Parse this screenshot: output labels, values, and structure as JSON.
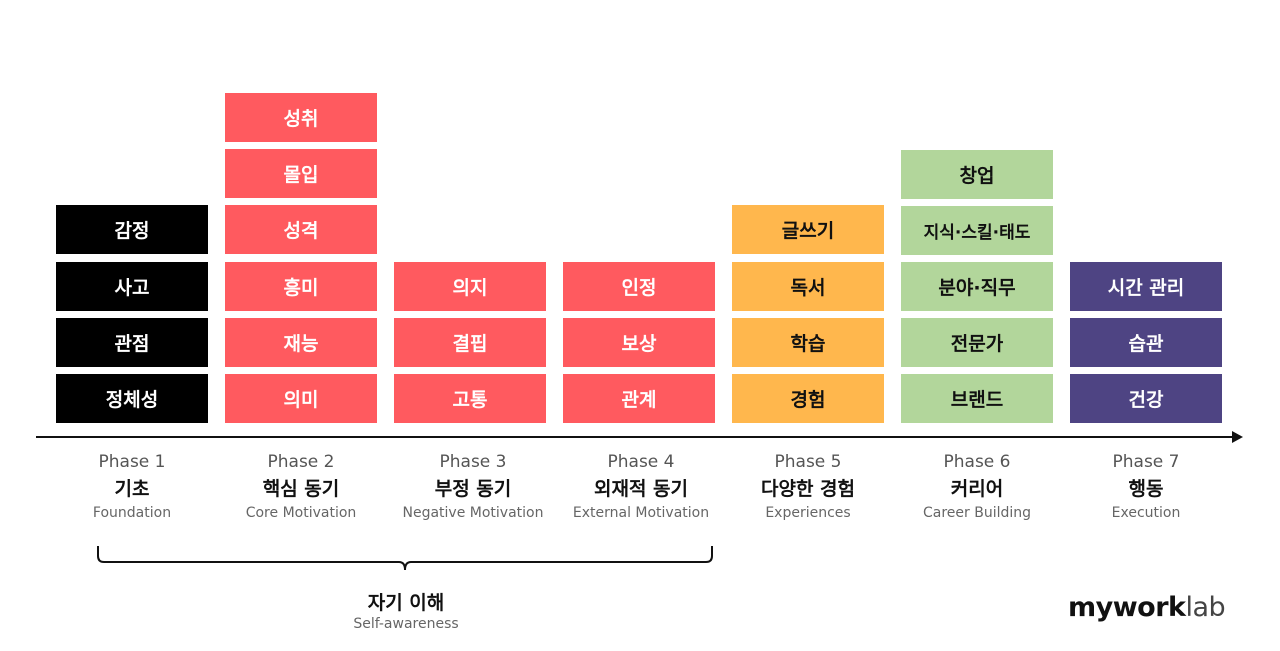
{
  "colors": {
    "phase1": "#000000",
    "phase2": "#ff5a5f",
    "phase3": "#ff5a5f",
    "phase4": "#ff5a5f",
    "phase5": "#ffb74d",
    "phase6": "#b2d69b",
    "phase7": "#4e4483"
  },
  "phases": [
    {
      "label": "Phase 1",
      "ko": "기초",
      "en": "Foundation",
      "items": [
        "감정",
        "사고",
        "관점",
        "정체성"
      ]
    },
    {
      "label": "Phase 2",
      "ko": "핵심 동기",
      "en": "Core Motivation",
      "items": [
        "성취",
        "몰입",
        "성격",
        "흥미",
        "재능",
        "의미"
      ]
    },
    {
      "label": "Phase 3",
      "ko": "부정 동기",
      "en": "Negative Motivation",
      "items": [
        "의지",
        "결핍",
        "고통"
      ]
    },
    {
      "label": "Phase 4",
      "ko": "외재적 동기",
      "en": "External Motivation",
      "items": [
        "인정",
        "보상",
        "관계"
      ]
    },
    {
      "label": "Phase 5",
      "ko": "다양한 경험",
      "en": "Experiences",
      "items": [
        "글쓰기",
        "독서",
        "학습",
        "경험"
      ]
    },
    {
      "label": "Phase 6",
      "ko": "커리어",
      "en": "Career Building",
      "items": [
        "창업",
        "지식·스킬·태도",
        "분야·직무",
        "전문가",
        "브랜드"
      ]
    },
    {
      "label": "Phase 7",
      "ko": "행동",
      "en": "Execution",
      "items": [
        "시간 관리",
        "습관",
        "건강"
      ]
    }
  ],
  "group": {
    "ko": "자기 이해",
    "en": "Self-awareness"
  },
  "logo": {
    "bold": "mywork",
    "light": "lab"
  }
}
